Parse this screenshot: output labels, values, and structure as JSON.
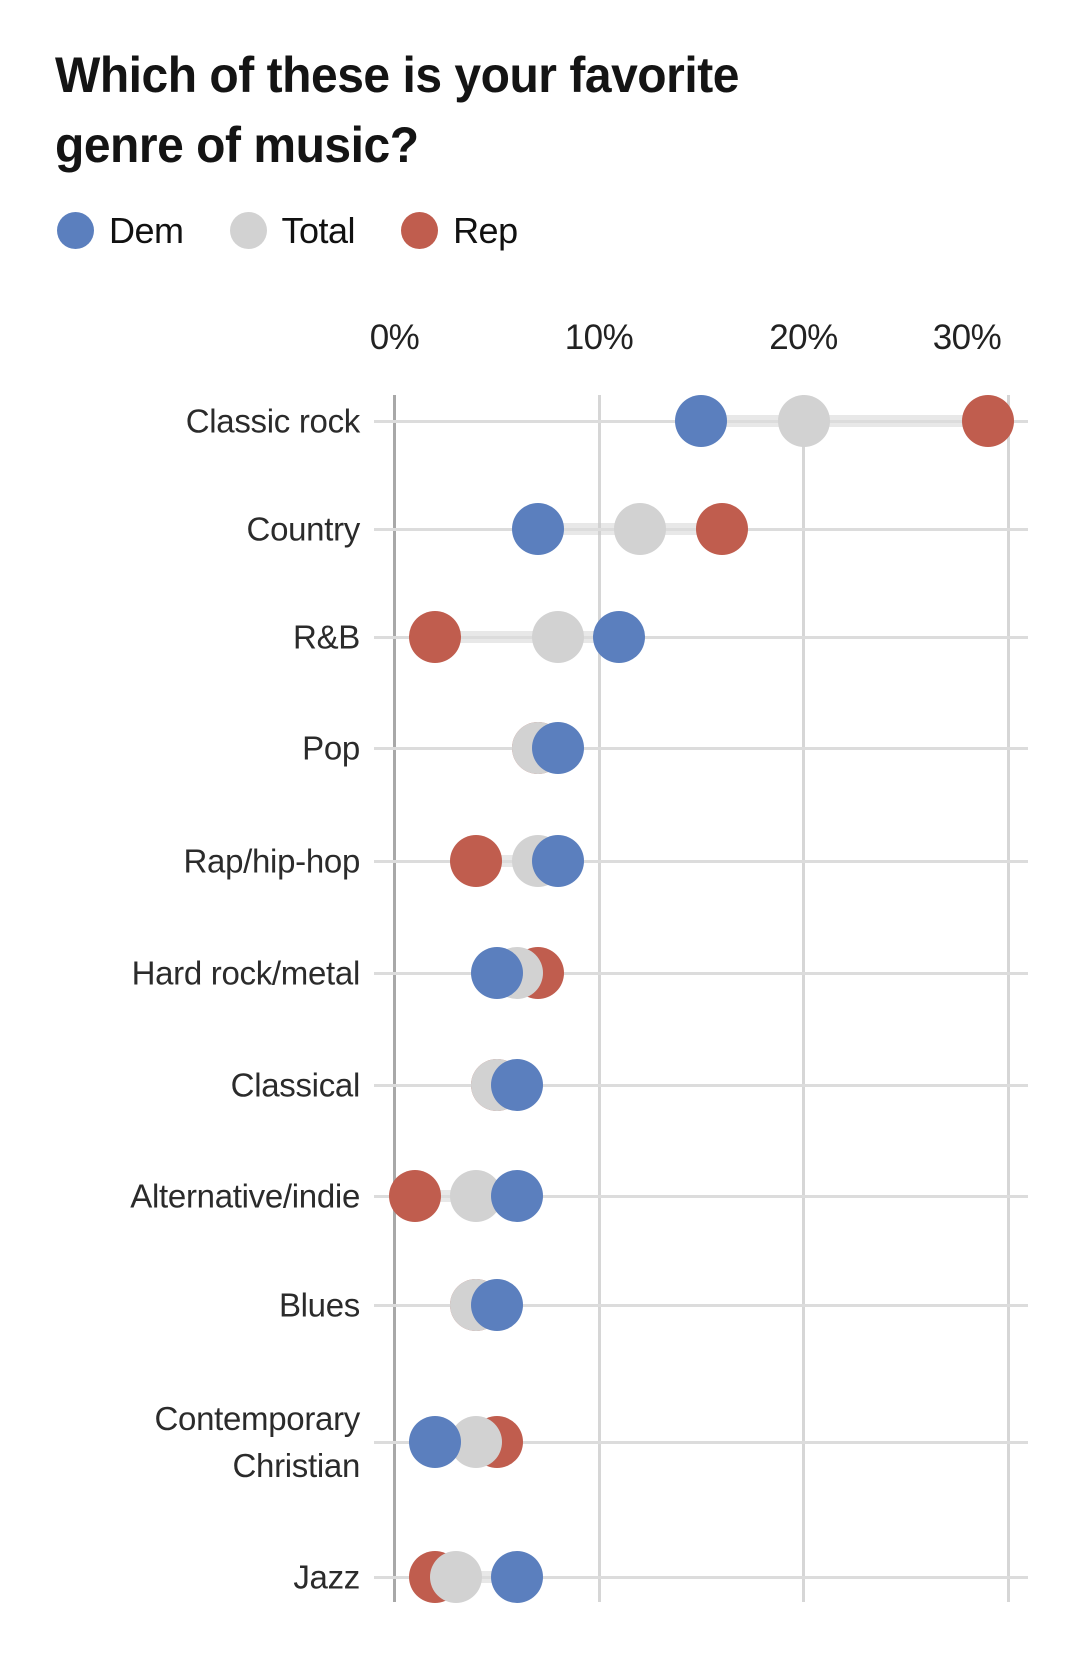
{
  "title": "Which of these is your favorite genre of music?",
  "colors": {
    "dem": "#5b7fbe",
    "total": "#d2d2d2",
    "rep": "#c05d4e"
  },
  "legend": [
    {
      "key": "dem",
      "label": "Dem"
    },
    {
      "key": "total",
      "label": "Total"
    },
    {
      "key": "rep",
      "label": "Rep"
    }
  ],
  "chart_data": {
    "type": "scatter",
    "subtype": "dumbbell-dot-plot",
    "title": "Which of these is your favorite genre of music?",
    "unit": "%",
    "categories": [
      "Classic rock",
      "Country",
      "R&B",
      "Pop",
      "Rap/hip-hop",
      "Hard rock/metal",
      "Classical",
      "Alternative/indie",
      "Blues",
      "Contemporary Christian",
      "Jazz"
    ],
    "series": [
      {
        "name": "Dem",
        "key": "dem",
        "color": "#5b7fbe",
        "values": [
          15,
          7,
          11,
          8,
          8,
          5,
          6,
          6,
          5,
          2,
          6
        ]
      },
      {
        "name": "Total",
        "key": "total",
        "color": "#d2d2d2",
        "values": [
          20,
          12,
          8,
          7,
          7,
          6,
          5,
          4,
          4,
          4,
          3
        ]
      },
      {
        "name": "Rep",
        "key": "rep",
        "color": "#c05d4e",
        "values": [
          29,
          16,
          2,
          7,
          4,
          7,
          5,
          1,
          4,
          5,
          2
        ]
      }
    ],
    "x_axis": {
      "tick_labels": [
        "0%",
        "10%",
        "20%",
        "30%"
      ],
      "tick_values": [
        0,
        10,
        20,
        30
      ],
      "min": 0,
      "max": 31
    },
    "grid": true,
    "legend_position": "top"
  }
}
